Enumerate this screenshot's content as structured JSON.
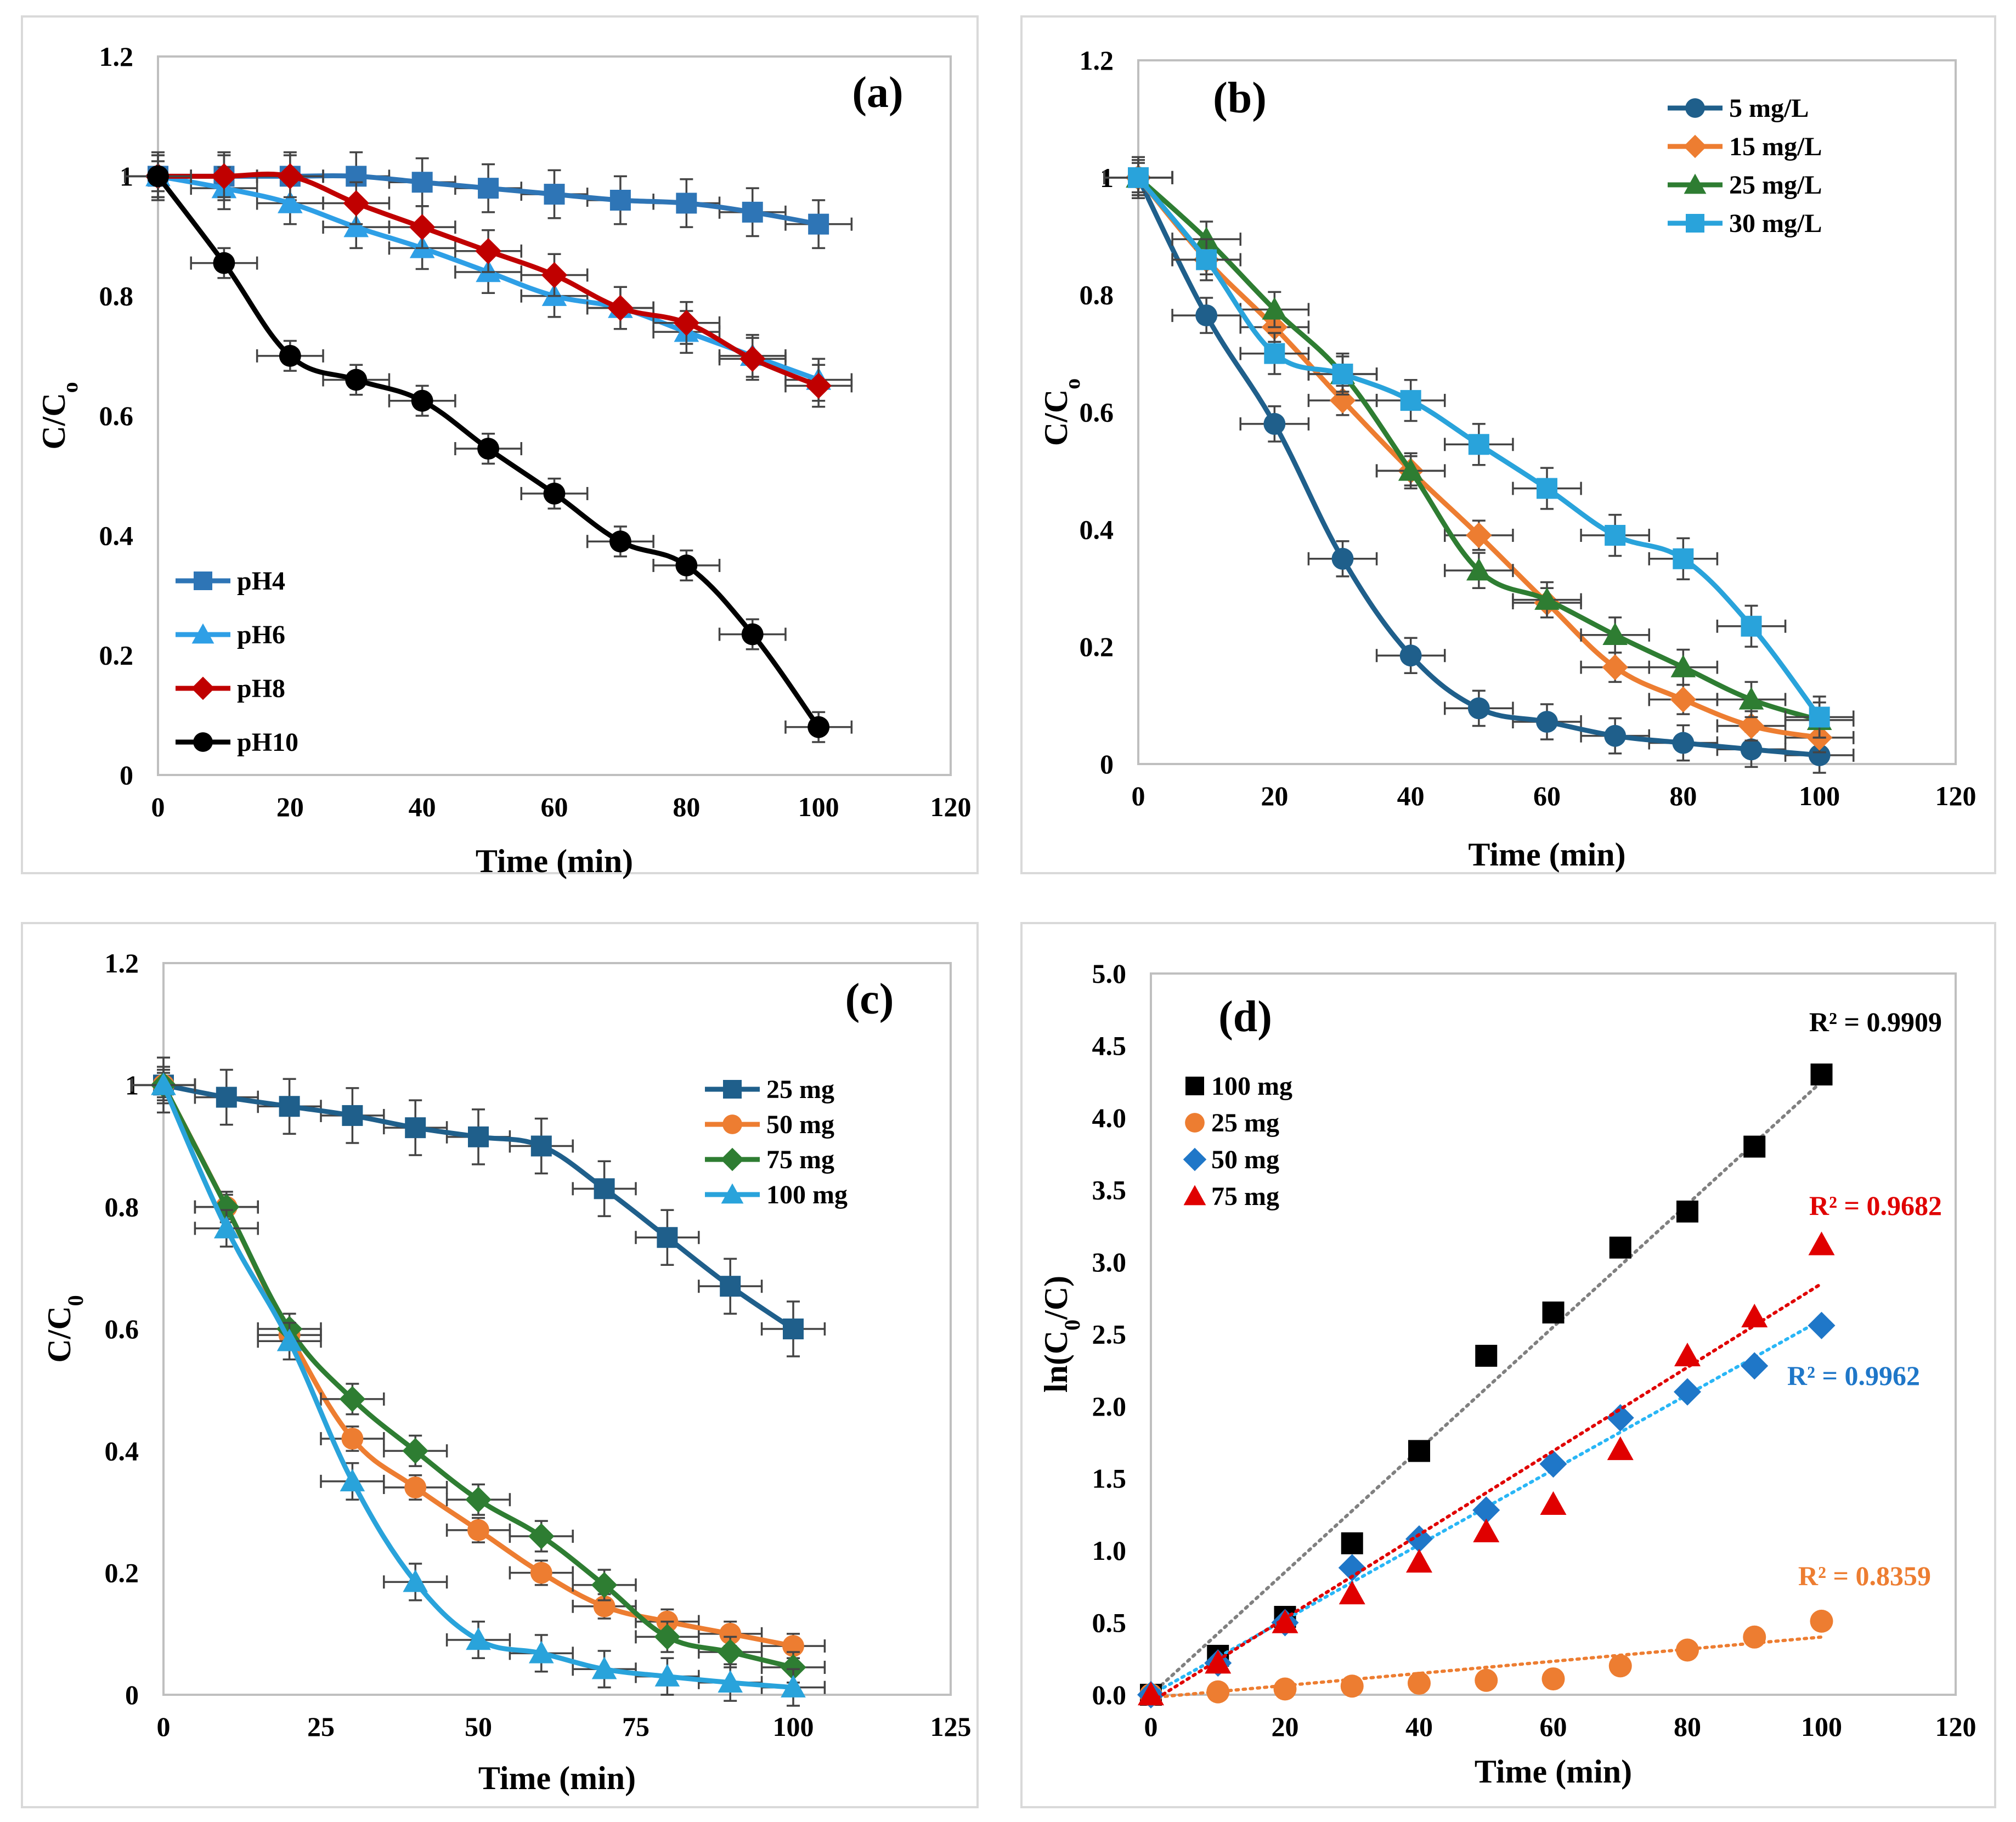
{
  "chart_data": [
    {
      "id": "a",
      "type": "line",
      "panel_label": "(a)",
      "xlabel": "Time (min)",
      "ylabel": "C/C",
      "ylabel_sub": "o",
      "xlim": [
        0,
        120
      ],
      "ylim": [
        0,
        1.2
      ],
      "xticks": [
        0,
        20,
        40,
        60,
        80,
        100,
        120
      ],
      "yticks": [
        0,
        0.2,
        0.4,
        0.6,
        0.8,
        1,
        1.2
      ],
      "ytick_labels": [
        "0",
        "0.2",
        "0.4",
        "0.6",
        "0.8",
        "1",
        "1.2"
      ],
      "legend_position": "bottom-left",
      "x": [
        0,
        10,
        20,
        30,
        40,
        50,
        60,
        70,
        80,
        90,
        100
      ],
      "series": [
        {
          "name": "pH4",
          "color": "#2E75B6",
          "marker": "square",
          "values": [
            1.0,
            1.0,
            1.0,
            1.0,
            0.99,
            0.98,
            0.97,
            0.96,
            0.955,
            0.94,
            0.92
          ],
          "error": 0.04
        },
        {
          "name": "pH6",
          "color": "#2E9FE6",
          "marker": "triangle",
          "values": [
            1.0,
            0.98,
            0.955,
            0.915,
            0.88,
            0.84,
            0.8,
            0.78,
            0.74,
            0.7,
            0.66
          ],
          "error": 0.035
        },
        {
          "name": "pH8",
          "color": "#C00000",
          "marker": "diamond",
          "values": [
            1.0,
            1.0,
            1.0,
            0.955,
            0.915,
            0.875,
            0.835,
            0.78,
            0.755,
            0.695,
            0.65
          ],
          "error": 0.035
        },
        {
          "name": "pH10",
          "color": "#000000",
          "marker": "circle",
          "values": [
            1.0,
            0.855,
            0.7,
            0.66,
            0.625,
            0.545,
            0.47,
            0.39,
            0.35,
            0.235,
            0.08
          ],
          "error": 0.025
        }
      ]
    },
    {
      "id": "b",
      "type": "line",
      "panel_label": "(b)",
      "xlabel": "Time (min)",
      "ylabel": "C/C",
      "ylabel_sub": "o",
      "xlim": [
        0,
        120
      ],
      "ylim": [
        0,
        1.2
      ],
      "xticks": [
        0,
        20,
        40,
        60,
        80,
        100,
        120
      ],
      "yticks": [
        0,
        0.2,
        0.4,
        0.6,
        0.8,
        1,
        1.2
      ],
      "ytick_labels": [
        "0",
        "0.2",
        "0.4",
        "0.6",
        "0.8",
        "1",
        "1.2"
      ],
      "legend_position": "top-right",
      "x": [
        0,
        10,
        20,
        30,
        40,
        50,
        60,
        70,
        80,
        90,
        100
      ],
      "series": [
        {
          "name": "5 mg/L",
          "color": "#1F5F8B",
          "marker": "circle",
          "values": [
            1.0,
            0.765,
            0.58,
            0.35,
            0.185,
            0.095,
            0.072,
            0.048,
            0.036,
            0.025,
            0.015
          ],
          "error": 0.03
        },
        {
          "name": "15 mg/L",
          "color": "#ED7D31",
          "marker": "diamond",
          "values": [
            1.0,
            0.86,
            0.745,
            0.62,
            0.5,
            0.39,
            0.275,
            0.165,
            0.11,
            0.065,
            0.045
          ],
          "error": 0.025
        },
        {
          "name": "25 mg/L",
          "color": "#2E7D32",
          "marker": "triangle",
          "values": [
            1.0,
            0.895,
            0.775,
            0.665,
            0.5,
            0.33,
            0.28,
            0.22,
            0.165,
            0.11,
            0.075
          ],
          "error": 0.03
        },
        {
          "name": "30 mg/L",
          "color": "#29A3DB",
          "marker": "square",
          "values": [
            1.0,
            0.86,
            0.7,
            0.665,
            0.62,
            0.545,
            0.47,
            0.39,
            0.35,
            0.235,
            0.08
          ],
          "error": 0.035
        }
      ]
    },
    {
      "id": "c",
      "type": "line",
      "panel_label": "(c)",
      "xlabel": "Time (min)",
      "ylabel": "C/C",
      "ylabel_sub": "0",
      "xlim": [
        0,
        125
      ],
      "ylim": [
        0,
        1.2
      ],
      "xticks": [
        0,
        25,
        50,
        75,
        100,
        125
      ],
      "yticks": [
        0,
        0.2,
        0.4,
        0.6,
        0.8,
        1,
        1.2
      ],
      "ytick_labels": [
        "0",
        "0.2",
        "0.4",
        "0.6",
        "0.8",
        "1",
        "1.2"
      ],
      "legend_position": "right",
      "x": [
        0,
        10,
        20,
        30,
        40,
        50,
        60,
        70,
        80,
        90,
        100
      ],
      "series": [
        {
          "name": "25 mg",
          "color": "#1F5F8B",
          "marker": "square",
          "values": [
            1.0,
            0.98,
            0.965,
            0.95,
            0.93,
            0.915,
            0.9,
            0.83,
            0.75,
            0.67,
            0.6
          ],
          "error": 0.045
        },
        {
          "name": "50 mg",
          "color": "#ED7D31",
          "marker": "circle",
          "values": [
            1.0,
            0.8,
            0.59,
            0.42,
            0.34,
            0.27,
            0.2,
            0.145,
            0.12,
            0.1,
            0.08
          ],
          "error": 0.02
        },
        {
          "name": "75 mg",
          "color": "#2E7D32",
          "marker": "diamond",
          "values": [
            1.0,
            0.8,
            0.6,
            0.485,
            0.4,
            0.32,
            0.26,
            0.18,
            0.095,
            0.07,
            0.045
          ],
          "error": 0.025
        },
        {
          "name": "100 mg",
          "color": "#29A3DB",
          "marker": "triangle",
          "values": [
            1.0,
            0.765,
            0.58,
            0.35,
            0.185,
            0.09,
            0.068,
            0.042,
            0.03,
            0.02,
            0.012
          ],
          "error": 0.03
        }
      ]
    },
    {
      "id": "d",
      "type": "scatter",
      "panel_label": "(d)",
      "xlabel": "Time (min)",
      "ylabel": "ln(C",
      "ylabel_sub": "0",
      "ylabel_tail": "/C)",
      "xlim": [
        0,
        120
      ],
      "ylim": [
        0,
        5
      ],
      "xticks": [
        0,
        20,
        40,
        60,
        80,
        100,
        120
      ],
      "yticks": [
        0,
        0.5,
        1,
        1.5,
        2,
        2.5,
        3,
        3.5,
        4,
        4.5,
        5
      ],
      "ytick_labels": [
        "0.0",
        "0.5",
        "1.0",
        "1.5",
        "2.0",
        "2.5",
        "3.0",
        "3.5",
        "4.0",
        "4.5",
        "5.0"
      ],
      "legend_position": "top-left",
      "x": [
        0,
        10,
        20,
        30,
        40,
        50,
        60,
        70,
        80,
        90,
        100
      ],
      "series": [
        {
          "name": "100 mg",
          "color": "#000000",
          "marker": "square",
          "values": [
            0.0,
            0.27,
            0.54,
            1.05,
            1.69,
            2.35,
            2.65,
            3.1,
            3.35,
            3.8,
            4.3
          ],
          "fit": [
            0.0,
            4.25
          ],
          "r2": "R² = 0.9909",
          "r2_color": "#000000",
          "trend_color": "#808080"
        },
        {
          "name": "25 mg",
          "color": "#ED7D31",
          "marker": "circle",
          "values": [
            0.0,
            0.02,
            0.04,
            0.06,
            0.08,
            0.1,
            0.11,
            0.2,
            0.31,
            0.4,
            0.51
          ],
          "fit": [
            -0.02,
            0.4
          ],
          "r2": "R² = 0.8359",
          "r2_color": "#ED7D31",
          "trend_color": "#ED7D31"
        },
        {
          "name": "50 mg",
          "color": "#1F77C8",
          "marker": "diamond",
          "values": [
            0.0,
            0.22,
            0.5,
            0.88,
            1.08,
            1.28,
            1.6,
            1.92,
            2.1,
            2.28,
            2.56
          ],
          "fit": [
            0.0,
            2.6
          ],
          "r2": "R² = 0.9962",
          "r2_color": "#1F77C8",
          "trend_color": "#29B6F6"
        },
        {
          "name": "75 mg",
          "color": "#E00000",
          "marker": "triangle",
          "values": [
            0.0,
            0.22,
            0.5,
            0.7,
            0.92,
            1.13,
            1.32,
            1.7,
            2.35,
            2.62,
            3.12
          ],
          "fit": [
            -0.05,
            2.85
          ],
          "r2": "R² = 0.9682",
          "r2_color": "#E00000",
          "trend_color": "#E00000"
        }
      ]
    }
  ]
}
